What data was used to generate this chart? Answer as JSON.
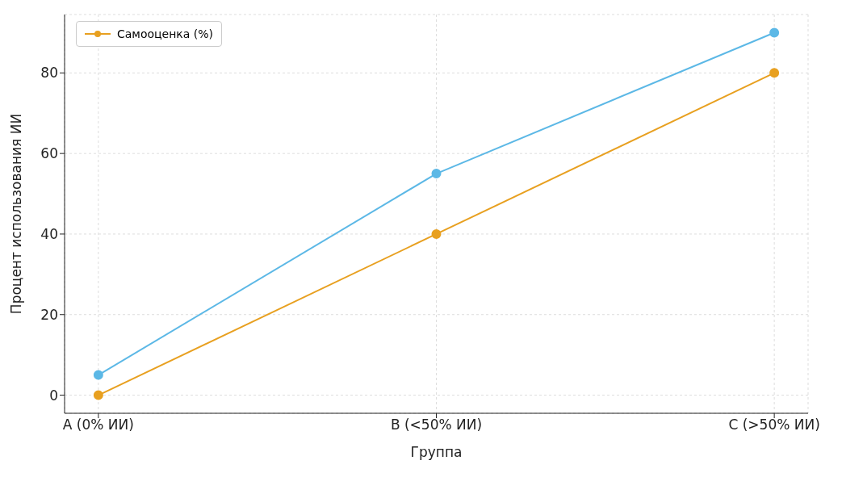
{
  "chart_data": {
    "type": "line",
    "xlabel": "Группа",
    "ylabel": "Процент использования ИИ",
    "categories": [
      "A (0% ИИ)",
      "B (<50% ИИ)",
      "C (>50% ИИ)"
    ],
    "series": [
      {
        "name": "Самооценка (%)",
        "color": "#e8a020",
        "values": [
          0,
          40,
          80
        ]
      },
      {
        "color": "#5cb8e6",
        "values": [
          5,
          55,
          90
        ]
      }
    ],
    "ylim": [
      -4.5,
      94.5
    ],
    "yticks": [
      0,
      20,
      40,
      60,
      80
    ],
    "grid": true,
    "legend": "top left",
    "marker": "circle",
    "line_style": "solid"
  }
}
